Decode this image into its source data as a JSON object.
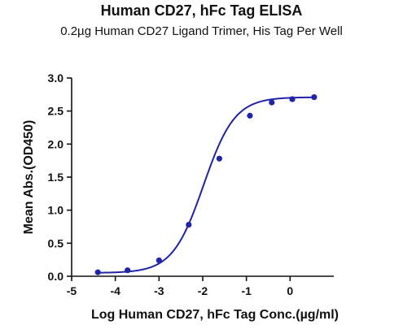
{
  "chart_data": {
    "type": "line",
    "title": "Human CD27, hFc Tag ELISA",
    "subtitle": "0.2µg Human CD27 Ligand Trimer, His Tag Per Well",
    "xlabel": "Log Human CD27, hFc Tag Conc.(µg/ml)",
    "ylabel": "Mean Abs.(OD450)",
    "xlim": [
      -5,
      1
    ],
    "ylim": [
      0,
      3.0
    ],
    "xticks": [
      -5,
      -4,
      -3,
      -2,
      -1,
      0
    ],
    "xtick_labels": [
      "-5",
      "-4",
      "-3",
      "-2",
      "-1",
      "0"
    ],
    "yticks": [
      0.0,
      0.5,
      1.0,
      1.5,
      2.0,
      2.5,
      3.0
    ],
    "ytick_labels": [
      "0.0",
      "0.5",
      "1.0",
      "1.5",
      "2.0",
      "2.5",
      "3.0"
    ],
    "grid": false,
    "series": [
      {
        "color": "#1f25a6",
        "points": [
          {
            "x": -4.4,
            "y": 0.06
          },
          {
            "x": -3.72,
            "y": 0.09
          },
          {
            "x": -3.0,
            "y": 0.24
          },
          {
            "x": -2.32,
            "y": 0.78
          },
          {
            "x": -1.62,
            "y": 1.78
          },
          {
            "x": -0.92,
            "y": 2.43
          },
          {
            "x": -0.42,
            "y": 2.63
          },
          {
            "x": 0.05,
            "y": 2.68
          },
          {
            "x": 0.55,
            "y": 2.71
          }
        ],
        "fit": {
          "model": "4PL",
          "bottom": 0.05,
          "top": 2.71,
          "logEC50": -1.98,
          "hill": 1.22
        }
      }
    ]
  }
}
